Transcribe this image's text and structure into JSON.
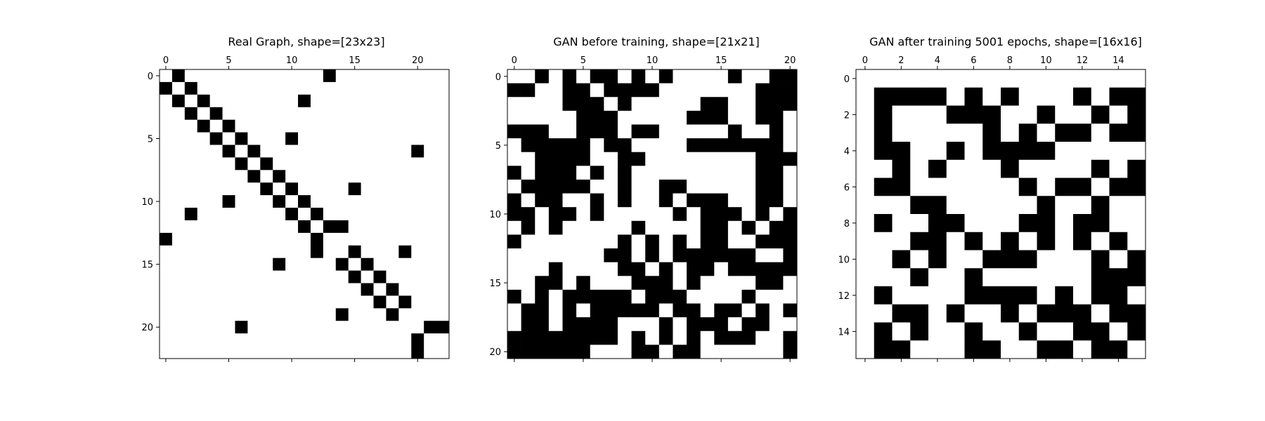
{
  "chart_data": [
    {
      "type": "heatmap",
      "title": "Real Graph, shape=[23x23]",
      "size": 23,
      "tick_step": 5,
      "colors": {
        "one": "#000000",
        "zero": "#ffffff"
      },
      "matrix": [
        "01000000000001000000000",
        "10100000000000000000000",
        "01010000000100000000000",
        "00101000000000000000000",
        "00010100000000000000000",
        "00001010001000000000000",
        "00000101000000000000100",
        "00000010100000000000000",
        "00000001010000000000000",
        "00000000101000010000000",
        "00000100010100000000000",
        "00100000001010000000000",
        "00000000000101100000000",
        "10000000000010000000000",
        "00000000000010010001000",
        "00000000010000101000000",
        "00000000000000010100000",
        "00000000000000001010000",
        "00000000000000000101000",
        "00000000000000100010000",
        "00000010000000000000011",
        "00000000000000000000100",
        "00000000000000000000100"
      ]
    },
    {
      "type": "heatmap",
      "title": "GAN before training, shape=[21x21]",
      "size": 21,
      "tick_step": 5,
      "colors": {
        "one": "#000000",
        "zero": "#ffffff"
      },
      "matrix": [
        "001010110101000010011",
        "110011011110000000111",
        "000011101000001100111",
        "000001110000011100110",
        "111001110110000010010",
        "011111011000011111110",
        "001111001100000000111",
        "101110101000000000110",
        "011111001001100000110",
        "101100101001011100110",
        "110110100000101110101",
        "010100000100001101011",
        "100000001010101100111",
        "000000011010111111001",
        "000100001101011011111",
        "001101000111010000110",
        "101011111011100001000",
        "011010111110110110101",
        "011011110001011101100",
        "111111110101010111001",
        "111111000110110000001"
      ]
    },
    {
      "type": "heatmap",
      "title": "GAN after training 5001 epochs, shape=[16x16]",
      "size": 16,
      "tick_step": 2,
      "colors": {
        "one": "#000000",
        "zero": "#ffffff"
      },
      "matrix": [
        "0000000000000000",
        "0111101010001011",
        "0100011100100101",
        "0100000101011011",
        "0110010111100000",
        "0010100010000101",
        "0110000001011011",
        "0001100000100100",
        "0100110001101100",
        "0001101010101010",
        "0010100111000101",
        "0001001000000111",
        "0100001111010110",
        "0011010010111011",
        "0101001001001101",
        "0110001100110110"
      ]
    }
  ]
}
